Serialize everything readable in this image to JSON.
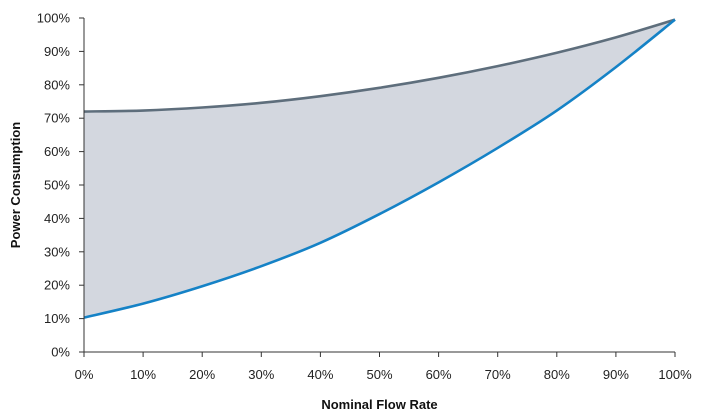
{
  "chart_data": {
    "type": "area",
    "title": "",
    "xlabel": "Nominal Flow Rate",
    "ylabel": "Power Consumption",
    "xlim": [
      0,
      100
    ],
    "ylim": [
      0,
      100
    ],
    "x_ticks": [
      0,
      10,
      20,
      30,
      40,
      50,
      60,
      70,
      80,
      90,
      100
    ],
    "y_ticks": [
      0,
      10,
      20,
      30,
      40,
      50,
      60,
      70,
      80,
      90,
      100
    ],
    "x_tick_labels": [
      "0%",
      "10%",
      "20%",
      "30%",
      "40%",
      "50%",
      "60%",
      "70%",
      "80%",
      "90%",
      "100%"
    ],
    "y_tick_labels": [
      "0%",
      "10%",
      "20%",
      "30%",
      "40%",
      "50%",
      "60%",
      "70%",
      "80%",
      "90%",
      "100%"
    ],
    "grid": false,
    "legend": "none",
    "x": [
      0,
      10,
      20,
      30,
      40,
      50,
      60,
      70,
      80,
      90,
      100
    ],
    "series": [
      {
        "values": [
          72,
          72.3,
          73.2,
          74.6,
          76.6,
          79.1,
          82.1,
          85.6,
          89.6,
          94.2,
          99.5
        ],
        "color": "#5e6e7c"
      },
      {
        "values": [
          10.3,
          14.5,
          19.7,
          25.7,
          32.7,
          41.3,
          50.8,
          61.1,
          72.3,
          85.3,
          99.5
        ],
        "color": "#1582c6"
      }
    ],
    "fill_between": {
      "color": "#d3d7df"
    }
  }
}
